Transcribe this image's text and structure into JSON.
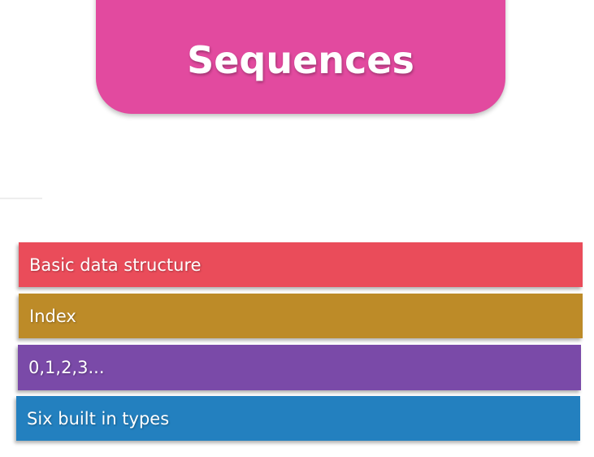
{
  "title": "Sequences",
  "items": [
    {
      "label": "Basic data structure",
      "color": "#ea4c5a"
    },
    {
      "label": "Index",
      "color": "#bd8b28"
    },
    {
      "label": "0,1,2,3...",
      "color": "#7a4aa8"
    },
    {
      "label": "Six built in types",
      "color": "#2380bf"
    }
  ]
}
